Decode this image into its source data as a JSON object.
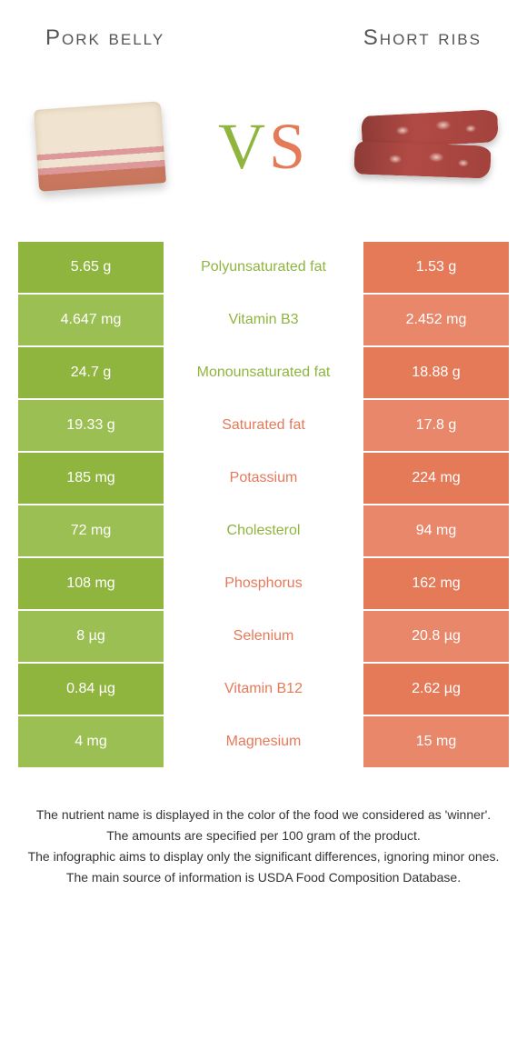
{
  "colors": {
    "left": "#8fb53f",
    "right": "#e57a59",
    "left_alt": "#9cbf53",
    "right_alt": "#e8876a"
  },
  "header": {
    "left_title": "Pork belly",
    "right_title": "Short ribs"
  },
  "vs": {
    "v": "V",
    "s": "S"
  },
  "rows": [
    {
      "left": "5.65 g",
      "label": "Polyunsaturated fat",
      "right": "1.53 g",
      "winner": "left"
    },
    {
      "left": "4.647 mg",
      "label": "Vitamin B3",
      "right": "2.452 mg",
      "winner": "left"
    },
    {
      "left": "24.7 g",
      "label": "Monounsaturated fat",
      "right": "18.88 g",
      "winner": "left"
    },
    {
      "left": "19.33 g",
      "label": "Saturated fat",
      "right": "17.8 g",
      "winner": "right"
    },
    {
      "left": "185 mg",
      "label": "Potassium",
      "right": "224 mg",
      "winner": "right"
    },
    {
      "left": "72 mg",
      "label": "Cholesterol",
      "right": "94 mg",
      "winner": "left"
    },
    {
      "left": "108 mg",
      "label": "Phosphorus",
      "right": "162 mg",
      "winner": "right"
    },
    {
      "left": "8 µg",
      "label": "Selenium",
      "right": "20.8 µg",
      "winner": "right"
    },
    {
      "left": "0.84 µg",
      "label": "Vitamin B12",
      "right": "2.62 µg",
      "winner": "right"
    },
    {
      "left": "4 mg",
      "label": "Magnesium",
      "right": "15 mg",
      "winner": "right"
    }
  ],
  "footer": {
    "line1": "The nutrient name is displayed in the color of the food we considered as 'winner'.",
    "line2": "The amounts are specified per 100 gram of the product.",
    "line3": "The infographic aims to display only the significant differences, ignoring minor ones.",
    "line4": "The main source of information is USDA Food Composition Database."
  }
}
